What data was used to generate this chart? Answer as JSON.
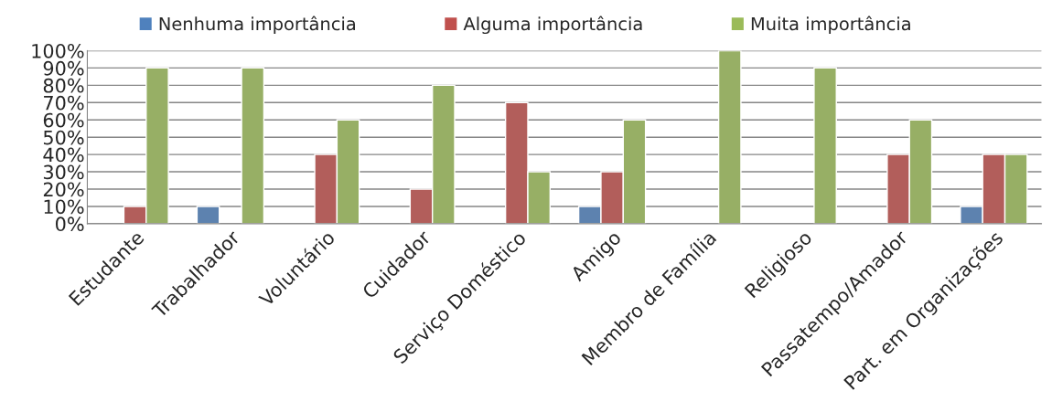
{
  "chart_data": {
    "type": "bar",
    "categories": [
      "Estudante",
      "Trabalhador",
      "Voluntário",
      "Cuidador",
      "Serviço Doméstico",
      "Amigo",
      "Membro de Família",
      "Religioso",
      "Passatempo/Amador",
      "Part. em Organizações"
    ],
    "series": [
      {
        "name": "Nenhuma importância",
        "color": "#4f81bd",
        "values": [
          0,
          10,
          0,
          0,
          0,
          10,
          0,
          0,
          0,
          10
        ]
      },
      {
        "name": "Alguma importância",
        "color": "#c0504d",
        "values": [
          10,
          0,
          40,
          20,
          70,
          30,
          0,
          0,
          40,
          40
        ]
      },
      {
        "name": "Muita importância",
        "color": "#9bbb59",
        "values": [
          90,
          90,
          60,
          80,
          30,
          60,
          100,
          90,
          60,
          40
        ]
      }
    ],
    "ylim": [
      0,
      100
    ],
    "yticks": [
      {
        "value": 0,
        "label": "0%"
      },
      {
        "value": 10,
        "label": "10%"
      },
      {
        "value": 20,
        "label": "20%"
      },
      {
        "value": 30,
        "label": "30%"
      },
      {
        "value": 40,
        "label": "40%"
      },
      {
        "value": 50,
        "label": "50%"
      },
      {
        "value": 60,
        "label": "60%"
      },
      {
        "value": 70,
        "label": "70%"
      },
      {
        "value": 80,
        "label": "80%"
      },
      {
        "value": 90,
        "label": "90%"
      },
      {
        "value": 100,
        "label": "100%"
      }
    ],
    "grid": "y",
    "legend": "top"
  }
}
